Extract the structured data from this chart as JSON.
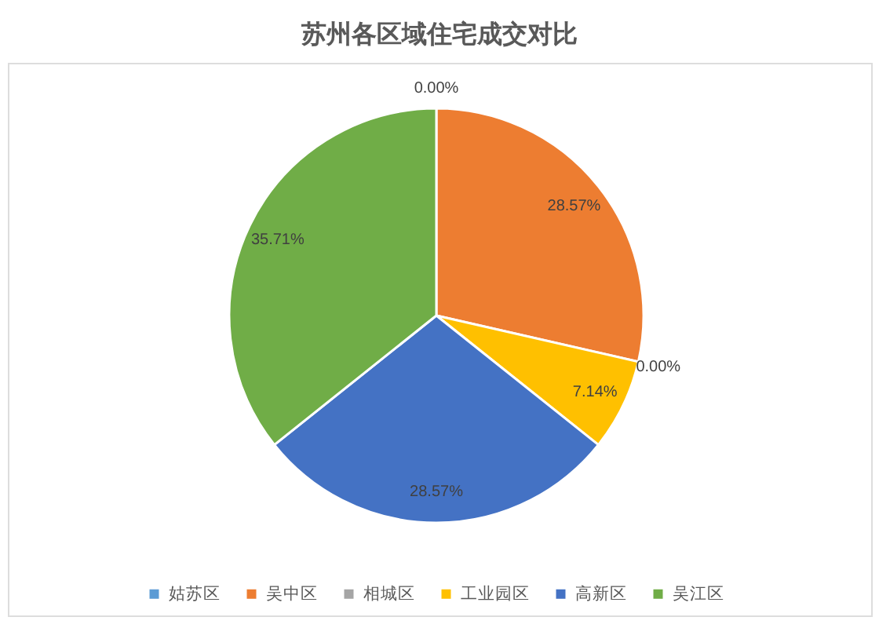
{
  "chart_data": {
    "type": "pie",
    "title": "苏州各区域住宅成交对比",
    "categories": [
      "姑苏区",
      "吴中区",
      "相城区",
      "工业园区",
      "高新区",
      "吴江区"
    ],
    "values": [
      0,
      28.57,
      0,
      7.14,
      28.57,
      35.71
    ],
    "colors": [
      "#5b9bd5",
      "#ed7d31",
      "#a5a5a5",
      "#ffc000",
      "#4472c4",
      "#70ad47"
    ],
    "value_labels": [
      "0.00%",
      "28.57%",
      "0.00%",
      "7.14%",
      "28.57%",
      "35.71%"
    ],
    "legend": "bottom"
  }
}
